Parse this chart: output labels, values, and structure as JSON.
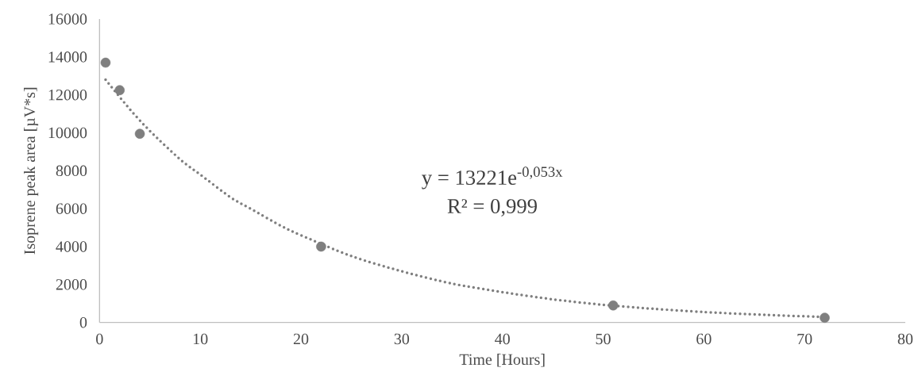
{
  "chart_data": {
    "type": "scatter",
    "xlabel": "Time [Hours]",
    "ylabel": "Isoprene peak area [µV*s]",
    "xlim": [
      0,
      80
    ],
    "xticks": [
      0,
      10,
      20,
      30,
      40,
      50,
      60,
      70,
      80
    ],
    "ylim": [
      0,
      16000
    ],
    "yticks": [
      0,
      2000,
      4000,
      6000,
      8000,
      10000,
      12000,
      14000,
      16000
    ],
    "grid": false,
    "series": [
      {
        "color": "#7f7f7f",
        "marker": "circle",
        "x": [
          0.6,
          2,
          4,
          22,
          51,
          72
        ],
        "values": [
          13700,
          12250,
          9950,
          4000,
          900,
          250
        ]
      },
      {
        "type": "line",
        "color": "#7f7f7f",
        "marker": "none",
        "line_style": "dotted",
        "x": [
          0.6,
          3,
          5,
          8,
          10,
          13,
          15,
          18,
          20,
          25,
          30,
          35,
          40,
          45,
          50,
          55,
          60,
          66,
          72
        ],
        "values": [
          12800,
          11250,
          10100,
          8600,
          7800,
          6600,
          6000,
          5100,
          4600,
          3500,
          2700,
          2050,
          1600,
          1220,
          930,
          720,
          550,
          400,
          290
        ]
      }
    ],
    "annotations": [
      "y = 13221e$^{-0,053x}$",
      "R² = 0,999"
    ]
  }
}
